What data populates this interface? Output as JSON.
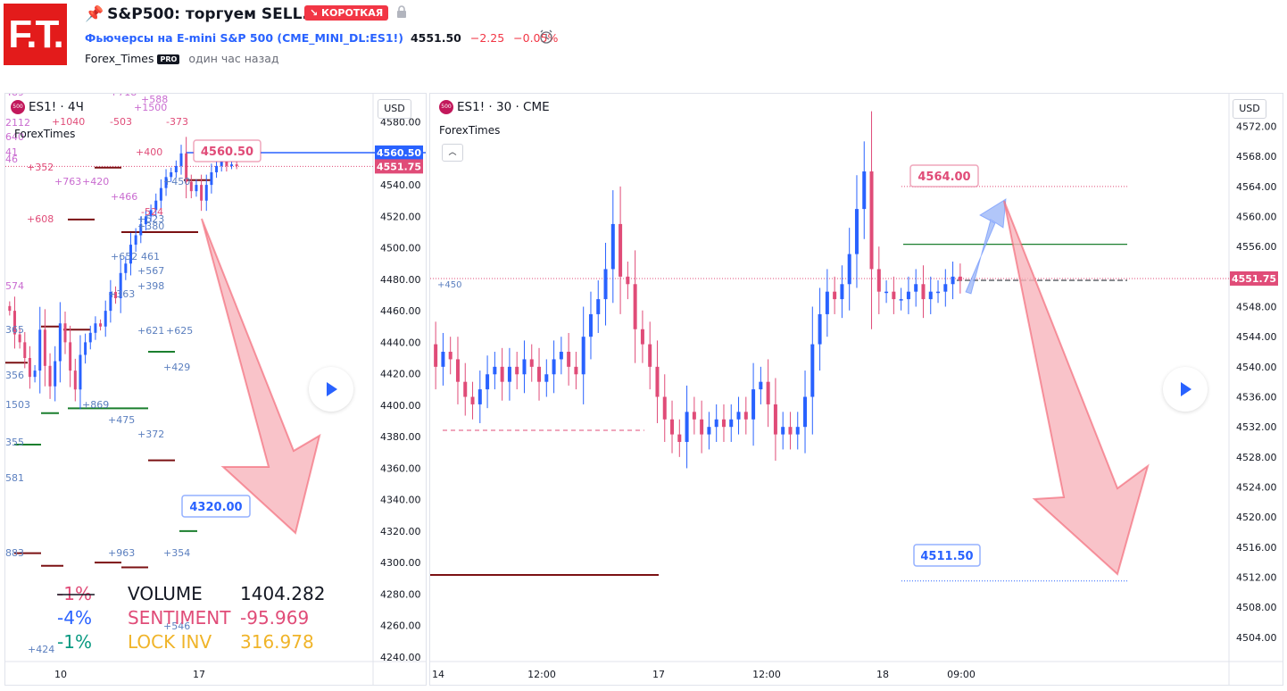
{
  "header": {
    "logo_text": "F.T.",
    "title": "S&P500: торгуем SELL.",
    "badge": "↘ КОРОТКАЯ",
    "symbol_link": "Фьючерсы на E-mini S&P 500 (CME_MINI_DL:ES1!)",
    "last_price": "4551.50",
    "change": "−2.25",
    "change_pct": "−0.05%",
    "author": "Forex_Times",
    "pro_badge": "PRO",
    "published": "один час назад"
  },
  "colors": {
    "up": "#2962ff",
    "down": "#e04c78",
    "brand": "#e31b1b",
    "target_red": "#f25a6a",
    "target_blue": "#2962ff"
  },
  "left_chart": {
    "legend": "ES1! · 4Ч",
    "source_icon": "500",
    "sub_label": "ForexTimes",
    "currency": "USD",
    "y_ticks": [
      "4580.00",
      "4560.00",
      "4540.00",
      "4520.00",
      "4500.00",
      "4480.00",
      "4460.00",
      "4440.00",
      "4420.00",
      "4400.00",
      "4380.00",
      "4360.00",
      "4340.00",
      "4320.00",
      "4300.00",
      "4280.00",
      "4260.00",
      "4240.00"
    ],
    "x_ticks": [
      "10",
      "17"
    ],
    "badge_blue": "4560.50",
    "badge_pink": "4551.75",
    "callout_red": "4560.50",
    "callout_blue": "4320.00",
    "volume_labels": [
      {
        "t": "+352",
        "c": "#e04c78"
      },
      {
        "t": "+763",
        "c": "#c96bd0"
      },
      {
        "t": "+420",
        "c": "#c96bd0"
      },
      {
        "t": "+466",
        "c": "#c96bd0"
      },
      {
        "t": "+608",
        "c": "#e04c78"
      },
      {
        "t": "+400",
        "c": "#e04c78"
      },
      {
        "t": "-373",
        "c": "#e04c78"
      },
      {
        "t": "-503",
        "c": "#e04c78"
      },
      {
        "t": "+1040",
        "c": "#e04c78"
      },
      {
        "t": "+1500",
        "c": "#c96bd0"
      },
      {
        "t": "+588",
        "c": "#c96bd0"
      },
      {
        "t": "+450",
        "c": "#5b7fbf"
      },
      {
        "t": "-524",
        "c": "#e04c78"
      },
      {
        "t": "+523",
        "c": "#5b7fbf"
      },
      {
        "t": "+380",
        "c": "#5b7fbf"
      },
      {
        "t": "+652",
        "c": "#5b7fbf"
      },
      {
        "t": "461",
        "c": "#5b7fbf"
      },
      {
        "t": "+567",
        "c": "#5b7fbf"
      },
      {
        "t": "+398",
        "c": "#5b7fbf"
      },
      {
        "t": "+363",
        "c": "#5b7fbf"
      },
      {
        "t": "+621",
        "c": "#5b7fbf"
      },
      {
        "t": "+625",
        "c": "#5b7fbf"
      },
      {
        "t": "+429",
        "c": "#5b7fbf"
      },
      {
        "t": "+869",
        "c": "#5b7fbf"
      },
      {
        "t": "+475",
        "c": "#5b7fbf"
      },
      {
        "t": "+372",
        "c": "#5b7fbf"
      },
      {
        "t": "+963",
        "c": "#5b7fbf"
      },
      {
        "t": "+354",
        "c": "#5b7fbf"
      },
      {
        "t": "+424",
        "c": "#5b7fbf"
      },
      {
        "t": "+546",
        "c": "#5b7fbf"
      },
      {
        "t": "574",
        "c": "#c96bd0"
      },
      {
        "t": "365",
        "c": "#5b7fbf"
      },
      {
        "t": "356",
        "c": "#5b7fbf"
      },
      {
        "t": "1503",
        "c": "#5b7fbf"
      },
      {
        "t": "355",
        "c": "#5b7fbf"
      },
      {
        "t": "581",
        "c": "#5b7fbf"
      },
      {
        "t": "883",
        "c": "#5b7fbf"
      },
      {
        "t": "2112",
        "c": "#c96bd0"
      },
      {
        "t": "640",
        "c": "#c96bd0"
      },
      {
        "t": "489",
        "c": "#c96bd0"
      },
      {
        "t": "+718",
        "c": "#c96bd0"
      },
      {
        "t": "41",
        "c": "#c96bd0"
      },
      {
        "t": "46",
        "c": "#c96bd0"
      }
    ],
    "stats": [
      {
        "pct": "-1%",
        "pct_color": "#e04c78",
        "name": "VOLUME",
        "name_color": "#131722",
        "value": "1404.282",
        "value_color": "#131722"
      },
      {
        "pct": "-4%",
        "pct_color": "#2962ff",
        "name": "SENTIMENT",
        "name_color": "#e04c78",
        "value": "-95.969",
        "value_color": "#e04c78"
      },
      {
        "pct": "-1%",
        "pct_color": "#089981",
        "name": "LOCK INV",
        "name_color": "#f0b429",
        "value": "316.978",
        "value_color": "#f0b429"
      }
    ]
  },
  "right_chart": {
    "legend": "ES1! · 30 · CME",
    "source_icon": "500",
    "sub_label": "ForexTimes",
    "currency": "USD",
    "y_ticks": [
      "4572.00",
      "4568.00",
      "4564.00",
      "4560.00",
      "4556.00",
      "4552.00",
      "4548.00",
      "4544.00",
      "4540.00",
      "4536.00",
      "4532.00",
      "4528.00",
      "4524.00",
      "4520.00",
      "4516.00",
      "4512.00",
      "4508.00",
      "4504.00"
    ],
    "x_ticks": [
      "14",
      "12:00",
      "17",
      "12:00",
      "18",
      "09:00"
    ],
    "badge_pink": "4551.75",
    "callout_red": "4564.00",
    "callout_blue": "4511.50",
    "level_label": "+450"
  },
  "chart_data": [
    {
      "type": "candlestick",
      "title": "ES1! · 4Ч",
      "ylim": [
        4230,
        4590
      ],
      "current_price": 4551.75,
      "target": 4320.0,
      "entry": 4560.5,
      "candles_close": [
        4460,
        4445,
        4440,
        4430,
        4418,
        4422,
        4448,
        4425,
        4412,
        4428,
        4452,
        4440,
        4422,
        4410,
        4432,
        4440,
        4446,
        4452,
        4450,
        4460,
        4472,
        4468,
        4484,
        4490,
        4502,
        4508,
        4515,
        4520,
        4524,
        4530,
        4538,
        4545,
        4548,
        4552,
        4560,
        4542,
        4536,
        4540,
        4530,
        4540,
        4548,
        4552,
        4556,
        4552,
        4553,
        4552
      ]
    },
    {
      "type": "candlestick",
      "title": "ES1! · 30 · CME",
      "ylim": [
        4502,
        4574
      ],
      "current_price": 4551.75,
      "target_high": 4564.0,
      "target_low": 4511.5,
      "candles_close": [
        4540,
        4542,
        4541,
        4538,
        4536,
        4535,
        4537,
        4539,
        4540,
        4538,
        4540,
        4539,
        4541,
        4540,
        4538,
        4539,
        4541,
        4542,
        4540,
        4539,
        4544,
        4547,
        4549,
        4553,
        4559,
        4552,
        4551,
        4545,
        4543,
        4540,
        4536,
        4533,
        4531,
        4530,
        4534,
        4533,
        4531,
        4532,
        4533,
        4532,
        4533,
        4534,
        4533,
        4537,
        4538,
        4535,
        4531,
        4532,
        4531,
        4532,
        4536,
        4543,
        4547,
        4550,
        4549,
        4551,
        4555,
        4561,
        4566,
        4553,
        4550,
        4550,
        4549,
        4549,
        4550,
        4551,
        4549,
        4550,
        4550,
        4551,
        4552,
        4551.5
      ]
    }
  ]
}
